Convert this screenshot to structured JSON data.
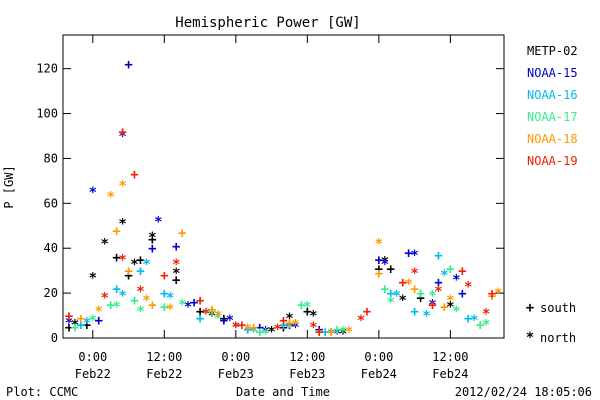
{
  "chart_data": {
    "type": "scatter",
    "title": "Hemispheric Power [GW]",
    "ylabel": "P [GW]",
    "xlabel": "Date and Time",
    "ylim": [
      0,
      135
    ],
    "yticks": [
      0,
      20,
      40,
      60,
      80,
      100,
      120
    ],
    "xlim": [
      "2012-02-21T19:00",
      "2012-02-24T21:00"
    ],
    "xticks": [
      {
        "time": "2012-02-22T00:00",
        "label_time": "0:00",
        "label_date": "Feb22"
      },
      {
        "time": "2012-02-22T12:00",
        "label_time": "12:00",
        "label_date": "Feb22"
      },
      {
        "time": "2012-02-23T00:00",
        "label_time": "0:00",
        "label_date": "Feb23"
      },
      {
        "time": "2012-02-23T12:00",
        "label_time": "12:00",
        "label_date": "Feb23"
      },
      {
        "time": "2012-02-24T00:00",
        "label_time": "0:00",
        "label_date": "Feb24"
      },
      {
        "time": "2012-02-24T12:00",
        "label_time": "12:00",
        "label_date": "Feb24"
      }
    ],
    "legend_position": "right",
    "symbols": {
      "south": "+",
      "north": "*"
    },
    "symbol_legend": [
      {
        "symbol": "+",
        "label": "south"
      },
      {
        "symbol": "*",
        "label": "north"
      }
    ],
    "series": [
      {
        "name": "METP-02",
        "color": "#000000",
        "south": [
          [
            "2012-02-21T20:00",
            5
          ],
          [
            "2012-02-21T23:00",
            6
          ],
          [
            "2012-02-22T04:00",
            36
          ],
          [
            "2012-02-22T06:00",
            28
          ],
          [
            "2012-02-22T08:00",
            35
          ],
          [
            "2012-02-22T10:00",
            44
          ],
          [
            "2012-02-22T14:00",
            26
          ],
          [
            "2012-02-22T18:00",
            12
          ],
          [
            "2012-02-22T22:00",
            9
          ],
          [
            "2012-02-23T02:00",
            4
          ],
          [
            "2012-02-23T08:00",
            5
          ],
          [
            "2012-02-23T12:00",
            12
          ],
          [
            "2012-02-23T16:00",
            3
          ],
          [
            "2012-02-24T00:00",
            31
          ],
          [
            "2012-02-24T02:00",
            31
          ],
          [
            "2012-02-24T07:00",
            18
          ]
        ],
        "north": [
          [
            "2012-02-21T21:00",
            6
          ],
          [
            "2012-02-22T00:00",
            27
          ],
          [
            "2012-02-22T02:00",
            42
          ],
          [
            "2012-02-22T05:00",
            51
          ],
          [
            "2012-02-22T07:00",
            33
          ],
          [
            "2012-02-22T10:00",
            45
          ],
          [
            "2012-02-22T14:00",
            29
          ],
          [
            "2012-02-22T20:00",
            10
          ],
          [
            "2012-02-23T00:00",
            5
          ],
          [
            "2012-02-23T06:00",
            3
          ],
          [
            "2012-02-23T09:00",
            9
          ],
          [
            "2012-02-23T13:00",
            10
          ],
          [
            "2012-02-23T18:00",
            2
          ],
          [
            "2012-02-24T01:00",
            34
          ],
          [
            "2012-02-24T04:00",
            17
          ],
          [
            "2012-02-24T12:00",
            14
          ]
        ]
      },
      {
        "name": "NOAA-15",
        "color": "#0000cc",
        "south": [
          [
            "2012-02-22T01:00",
            8
          ],
          [
            "2012-02-22T06:00",
            122
          ],
          [
            "2012-02-22T10:00",
            40
          ],
          [
            "2012-02-22T14:00",
            41
          ],
          [
            "2012-02-22T17:00",
            16
          ],
          [
            "2012-02-22T22:00",
            8
          ],
          [
            "2012-02-23T04:00",
            5
          ],
          [
            "2012-02-23T09:00",
            6
          ],
          [
            "2012-02-23T14:00",
            4
          ],
          [
            "2012-02-24T00:00",
            35
          ],
          [
            "2012-02-24T05:00",
            38
          ],
          [
            "2012-02-24T10:00",
            25
          ],
          [
            "2012-02-24T14:00",
            20
          ]
        ],
        "north": [
          [
            "2012-02-21T20:00",
            7
          ],
          [
            "2012-02-22T00:00",
            65
          ],
          [
            "2012-02-22T05:00",
            90
          ],
          [
            "2012-02-22T11:00",
            52
          ],
          [
            "2012-02-22T16:00",
            14
          ],
          [
            "2012-02-22T23:00",
            8
          ],
          [
            "2012-02-23T05:00",
            3
          ],
          [
            "2012-02-23T10:00",
            5
          ],
          [
            "2012-02-23T17:00",
            2
          ],
          [
            "2012-02-24T01:00",
            33
          ],
          [
            "2012-02-24T06:00",
            37
          ],
          [
            "2012-02-24T09:00",
            15
          ],
          [
            "2012-02-24T13:00",
            26
          ]
        ]
      },
      {
        "name": "NOAA-16",
        "color": "#00bbee",
        "south": [
          [
            "2012-02-21T22:00",
            6
          ],
          [
            "2012-02-22T04:00",
            22
          ],
          [
            "2012-02-22T08:00",
            30
          ],
          [
            "2012-02-22T12:00",
            20
          ],
          [
            "2012-02-22T18:00",
            9
          ],
          [
            "2012-02-23T02:00",
            4
          ],
          [
            "2012-02-23T08:00",
            6
          ],
          [
            "2012-02-23T15:00",
            3
          ],
          [
            "2012-02-24T02:00",
            20
          ],
          [
            "2012-02-24T06:00",
            12
          ],
          [
            "2012-02-24T10:00",
            37
          ],
          [
            "2012-02-24T15:00",
            9
          ]
        ],
        "north": [
          [
            "2012-02-21T23:00",
            7
          ],
          [
            "2012-02-22T05:00",
            19
          ],
          [
            "2012-02-22T09:00",
            33
          ],
          [
            "2012-02-22T13:00",
            18
          ],
          [
            "2012-02-22T19:00",
            11
          ],
          [
            "2012-02-23T03:00",
            3
          ],
          [
            "2012-02-23T09:00",
            5
          ],
          [
            "2012-02-23T16:00",
            2
          ],
          [
            "2012-02-24T03:00",
            19
          ],
          [
            "2012-02-24T08:00",
            10
          ],
          [
            "2012-02-24T11:00",
            28
          ],
          [
            "2012-02-24T16:00",
            8
          ]
        ]
      },
      {
        "name": "NOAA-17",
        "color": "#33ee88",
        "south": [
          [
            "2012-02-21T21:00",
            5
          ],
          [
            "2012-02-22T03:00",
            15
          ],
          [
            "2012-02-22T07:00",
            17
          ],
          [
            "2012-02-22T12:00",
            14
          ],
          [
            "2012-02-22T20:00",
            12
          ],
          [
            "2012-02-23T04:00",
            3
          ],
          [
            "2012-02-23T11:00",
            15
          ],
          [
            "2012-02-23T17:00",
            4
          ],
          [
            "2012-02-24T01:00",
            22
          ],
          [
            "2012-02-24T07:00",
            20
          ],
          [
            "2012-02-24T12:00",
            31
          ],
          [
            "2012-02-24T17:00",
            6
          ]
        ],
        "north": [
          [
            "2012-02-22T00:00",
            8
          ],
          [
            "2012-02-22T04:00",
            14
          ],
          [
            "2012-02-22T08:00",
            12
          ],
          [
            "2012-02-22T15:00",
            15
          ],
          [
            "2012-02-22T21:00",
            9
          ],
          [
            "2012-02-23T05:00",
            2
          ],
          [
            "2012-02-23T12:00",
            14
          ],
          [
            "2012-02-23T18:00",
            3
          ],
          [
            "2012-02-24T02:00",
            16
          ],
          [
            "2012-02-24T09:00",
            19
          ],
          [
            "2012-02-24T13:00",
            12
          ],
          [
            "2012-02-24T18:00",
            6
          ]
        ]
      },
      {
        "name": "NOAA-18",
        "color": "#ff9900",
        "south": [
          [
            "2012-02-21T22:00",
            9
          ],
          [
            "2012-02-22T04:00",
            48
          ],
          [
            "2012-02-22T06:00",
            30
          ],
          [
            "2012-02-22T10:00",
            15
          ],
          [
            "2012-02-22T15:00",
            47
          ],
          [
            "2012-02-22T20:00",
            13
          ],
          [
            "2012-02-23T03:00",
            5
          ],
          [
            "2012-02-23T09:00",
            7
          ],
          [
            "2012-02-23T16:00",
            3
          ],
          [
            "2012-02-24T00:00",
            29
          ],
          [
            "2012-02-24T06:00",
            22
          ],
          [
            "2012-02-24T11:00",
            14
          ],
          [
            "2012-02-24T19:00",
            19
          ]
        ],
        "north": [
          [
            "2012-02-22T01:00",
            12
          ],
          [
            "2012-02-22T03:00",
            63
          ],
          [
            "2012-02-22T05:00",
            68
          ],
          [
            "2012-02-22T09:00",
            17
          ],
          [
            "2012-02-22T13:00",
            13
          ],
          [
            "2012-02-22T21:00",
            10
          ],
          [
            "2012-02-23T02:00",
            4
          ],
          [
            "2012-02-23T10:00",
            6
          ],
          [
            "2012-02-23T19:00",
            3
          ],
          [
            "2012-02-24T00:00",
            42
          ],
          [
            "2012-02-24T05:00",
            24
          ],
          [
            "2012-02-24T12:00",
            17
          ],
          [
            "2012-02-24T20:00",
            20
          ]
        ]
      },
      {
        "name": "NOAA-19",
        "color": "#ee2200",
        "south": [
          [
            "2012-02-21T20:00",
            10
          ],
          [
            "2012-02-22T05:00",
            92
          ],
          [
            "2012-02-22T07:00",
            73
          ],
          [
            "2012-02-22T12:00",
            28
          ],
          [
            "2012-02-22T18:00",
            17
          ],
          [
            "2012-02-23T01:00",
            6
          ],
          [
            "2012-02-23T08:00",
            8
          ],
          [
            "2012-02-23T14:00",
            3
          ],
          [
            "2012-02-23T22:00",
            12
          ],
          [
            "2012-02-24T04:00",
            25
          ],
          [
            "2012-02-24T09:00",
            15
          ],
          [
            "2012-02-24T14:00",
            30
          ],
          [
            "2012-02-24T19:00",
            20
          ]
        ],
        "north": [
          [
            "2012-02-22T02:00",
            18
          ],
          [
            "2012-02-22T05:00",
            35
          ],
          [
            "2012-02-22T08:00",
            21
          ],
          [
            "2012-02-22T14:00",
            33
          ],
          [
            "2012-02-22T19:00",
            11
          ],
          [
            "2012-02-23T00:00",
            5
          ],
          [
            "2012-02-23T07:00",
            4
          ],
          [
            "2012-02-23T13:00",
            5
          ],
          [
            "2012-02-23T21:00",
            8
          ],
          [
            "2012-02-24T06:00",
            29
          ],
          [
            "2012-02-24T10:00",
            21
          ],
          [
            "2012-02-24T15:00",
            23
          ],
          [
            "2012-02-24T18:00",
            11
          ]
        ]
      }
    ]
  },
  "footer": {
    "left": "Plot: CCMC",
    "right": "2012/02/24 18:05:06"
  }
}
